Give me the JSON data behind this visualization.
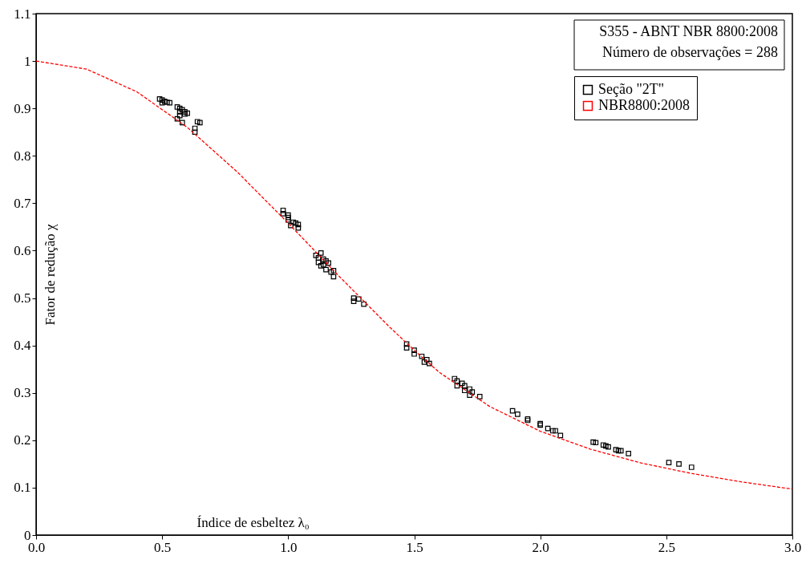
{
  "chart_data": {
    "type": "scatter",
    "xlabel": "Índice de esbeltez λ₀",
    "ylabel": "Fator de redução χ",
    "annotations": [
      "S355 - ABNT NBR 8800:2008",
      "Número de observações = 288"
    ],
    "xlim": [
      0,
      3
    ],
    "ylim": [
      0,
      1.1
    ],
    "xticks": [
      {
        "value": 0,
        "label": "0.0"
      },
      {
        "value": 0.5,
        "label": "0.5"
      },
      {
        "value": 1,
        "label": "1.0"
      },
      {
        "value": 1.5,
        "label": "1.5"
      },
      {
        "value": 2,
        "label": "2.0"
      },
      {
        "value": 2.5,
        "label": "2.5"
      },
      {
        "value": 3,
        "label": "3.0"
      }
    ],
    "yticks": [
      0,
      0.1,
      0.2,
      0.3,
      0.4,
      0.5,
      0.6,
      0.7,
      0.8,
      0.9,
      1,
      1.1
    ],
    "grid": false,
    "legend": "top right",
    "series": [
      {
        "name": "Seção \"2T\"",
        "marker": "square",
        "color": "#000000",
        "x": [
          0.49,
          0.5,
          0.51,
          0.52,
          0.53,
          0.5,
          0.56,
          0.57,
          0.58,
          0.59,
          0.57,
          0.56,
          0.58,
          0.6,
          0.59,
          0.57,
          0.63,
          0.63,
          0.64,
          0.65,
          0.98,
          0.98,
          1.0,
          1.0,
          1.01,
          1.02,
          1.03,
          1.04,
          1.04,
          1.0,
          1.11,
          1.12,
          1.12,
          1.13,
          1.14,
          1.14,
          1.15,
          1.16,
          1.15,
          1.17,
          1.18,
          1.18,
          1.13,
          1.26,
          1.26,
          1.28,
          1.3,
          1.47,
          1.47,
          1.5,
          1.5,
          1.53,
          1.54,
          1.55,
          1.56,
          1.66,
          1.67,
          1.67,
          1.69,
          1.7,
          1.7,
          1.72,
          1.73,
          1.72,
          1.76,
          1.89,
          1.91,
          1.95,
          1.95,
          2.0,
          2.0,
          2.03,
          2.05,
          2.06,
          2.08,
          2.21,
          2.22,
          2.25,
          2.26,
          2.27,
          2.3,
          2.31,
          2.32,
          2.35,
          2.51,
          2.55,
          2.6
        ],
        "values": [
          0.92,
          0.918,
          0.915,
          0.913,
          0.912,
          0.912,
          0.903,
          0.9,
          0.897,
          0.893,
          0.885,
          0.878,
          0.87,
          0.89,
          0.888,
          0.893,
          0.858,
          0.85,
          0.872,
          0.87,
          0.685,
          0.678,
          0.67,
          0.665,
          0.653,
          0.66,
          0.658,
          0.648,
          0.655,
          0.675,
          0.59,
          0.585,
          0.575,
          0.595,
          0.57,
          0.582,
          0.578,
          0.574,
          0.56,
          0.555,
          0.558,
          0.545,
          0.568,
          0.5,
          0.493,
          0.498,
          0.487,
          0.403,
          0.395,
          0.39,
          0.382,
          0.377,
          0.365,
          0.37,
          0.362,
          0.33,
          0.325,
          0.315,
          0.32,
          0.315,
          0.305,
          0.308,
          0.302,
          0.295,
          0.292,
          0.262,
          0.255,
          0.245,
          0.242,
          0.235,
          0.232,
          0.225,
          0.22,
          0.22,
          0.21,
          0.196,
          0.195,
          0.19,
          0.188,
          0.186,
          0.18,
          0.178,
          0.178,
          0.172,
          0.153,
          0.15,
          0.143
        ]
      },
      {
        "name": "NBR8800:2008",
        "type": "line",
        "line_style": "dashed",
        "marker": "none",
        "color": "#ff0000",
        "x": [
          0,
          0.2,
          0.4,
          0.6,
          0.8,
          1.0,
          1.2,
          1.4,
          1.5,
          1.6,
          1.8,
          2.0,
          2.2,
          2.4,
          2.6,
          2.8,
          3.0
        ],
        "values": [
          1.0,
          0.983,
          0.935,
          0.86,
          0.765,
          0.658,
          0.547,
          0.44,
          0.39,
          0.343,
          0.271,
          0.219,
          0.181,
          0.152,
          0.13,
          0.112,
          0.097
        ]
      }
    ]
  }
}
